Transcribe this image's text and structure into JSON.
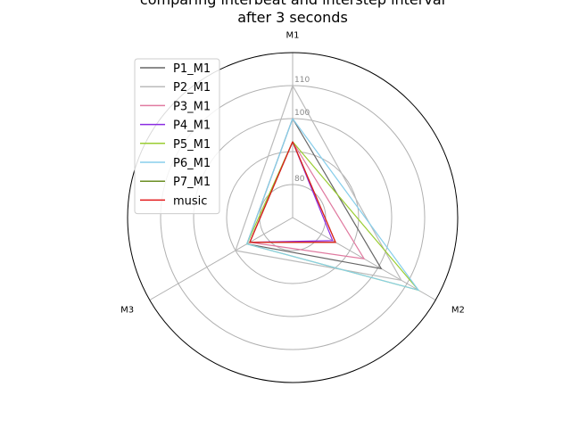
{
  "chart_data": {
    "type": "radar",
    "title_lines": [
      "comparing interbeat and interstep interval",
      "after 3 seconds"
    ],
    "axes": [
      "M1",
      "M2",
      "M3"
    ],
    "r_range": [
      70,
      120
    ],
    "r_ticks": [
      80,
      90,
      100,
      110
    ],
    "r_tick_labels": [
      "80",
      "",
      "100",
      "110"
    ],
    "grid": true,
    "legend_placement": "top-left",
    "series": [
      {
        "name": "P1_M1",
        "color": "#666666",
        "values": [
          100,
          101,
          86
        ]
      },
      {
        "name": "P2_M1",
        "color": "#bbbbbb",
        "values": [
          110,
          108,
          90
        ]
      },
      {
        "name": "P3_M1",
        "color": "#e07aa0",
        "values": [
          93,
          95,
          85
        ]
      },
      {
        "name": "P4_M1",
        "color": "#8a2be2",
        "values": [
          93,
          84,
          85
        ]
      },
      {
        "name": "P5_M1",
        "color": "#9acd32",
        "values": [
          93,
          114,
          86
        ]
      },
      {
        "name": "P6_M1",
        "color": "#87ceeb",
        "values": [
          100,
          114,
          86
        ]
      },
      {
        "name": "P7_M1",
        "color": "#6b8e23",
        "values": [
          93,
          85,
          85
        ]
      },
      {
        "name": "music",
        "color": "#e31a1c",
        "values": [
          93,
          85,
          85
        ]
      }
    ]
  }
}
